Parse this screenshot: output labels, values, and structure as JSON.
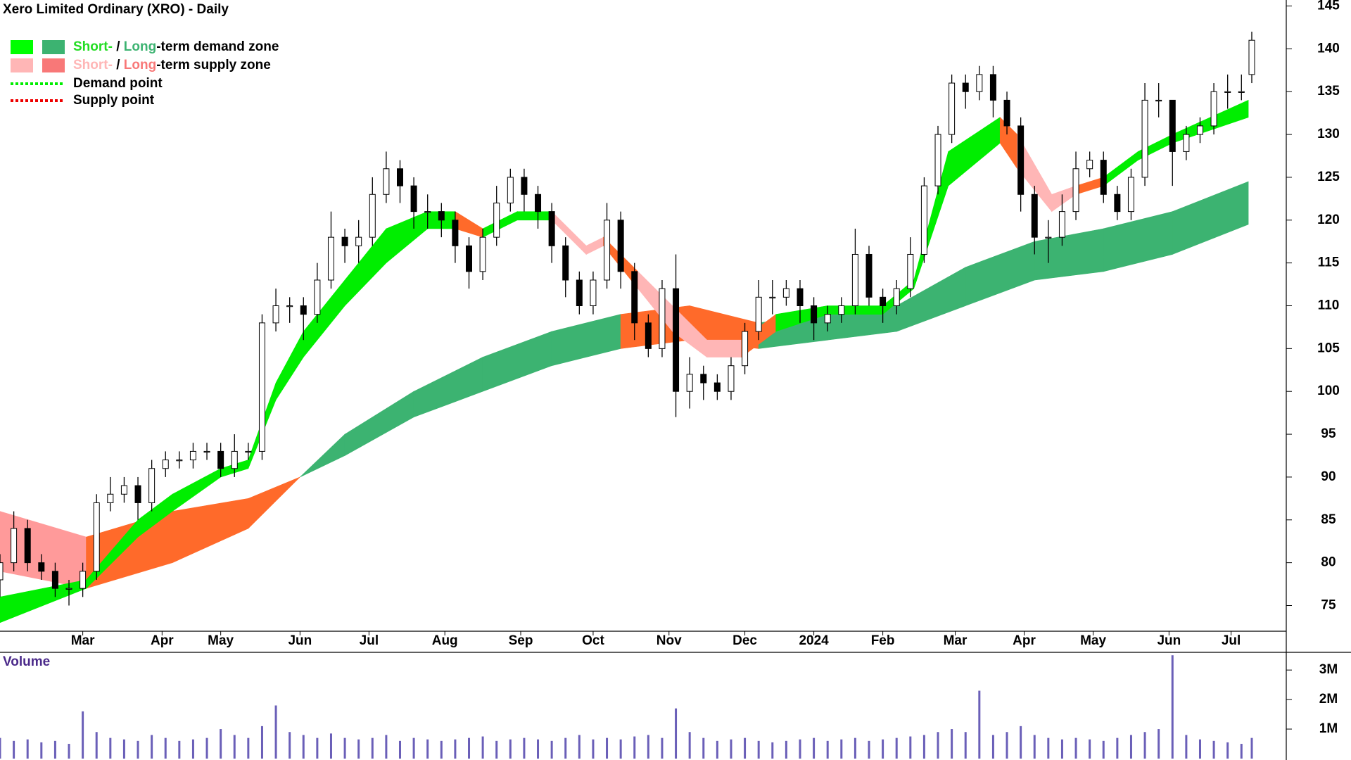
{
  "chart_data": {
    "type": "candlestick",
    "title": "Xero Limited Ordinary (XRO) - Daily",
    "volume_title": "Volume",
    "xlim": [
      0,
      373
    ],
    "xticks": [
      {
        "value": 24,
        "label": "Mar"
      },
      {
        "value": 47,
        "label": "Apr"
      },
      {
        "value": 64,
        "label": "May"
      },
      {
        "value": 87,
        "label": "Jun"
      },
      {
        "value": 107,
        "label": "Jul"
      },
      {
        "value": 129,
        "label": "Aug"
      },
      {
        "value": 151,
        "label": "Sep"
      },
      {
        "value": 172,
        "label": "Oct"
      },
      {
        "value": 194,
        "label": "Nov"
      },
      {
        "value": 216,
        "label": "Dec"
      },
      {
        "value": 236,
        "label": "2024"
      },
      {
        "value": 256,
        "label": "Feb"
      },
      {
        "value": 277,
        "label": "Mar"
      },
      {
        "value": 297,
        "label": "Apr"
      },
      {
        "value": 317,
        "label": "May"
      },
      {
        "value": 339,
        "label": "Jun"
      },
      {
        "value": 357,
        "label": "Jul"
      }
    ],
    "ylim": [
      72,
      145.7
    ],
    "yticks": [
      75,
      80,
      85,
      90,
      95,
      100,
      105,
      110,
      115,
      120,
      125,
      130,
      135,
      140,
      145
    ],
    "vlim": [
      0,
      3600000
    ],
    "vticks": [
      {
        "value": 1000000,
        "label": "1M"
      },
      {
        "value": 2000000,
        "label": "2M"
      },
      {
        "value": 3000000,
        "label": "3M"
      }
    ],
    "volume_color": "#6a5fb8",
    "up_color": "#ffffff",
    "down_color": "#000000",
    "legend": [
      {
        "swatches": [
          "#00ff00",
          "#3cb371"
        ],
        "short": "Short-",
        "short_color": "#22dd22",
        "sep": " / ",
        "long": "Long",
        "long_color": "#3cb371",
        "rest": "-term demand zone"
      },
      {
        "swatches": [
          "#ffb6b6",
          "#f87878"
        ],
        "short": "Short-",
        "short_color": "#ffb6b6",
        "sep": " / ",
        "long": "Long",
        "long_color": "#f87878",
        "rest": "-term supply zone"
      },
      {
        "line_color": "#00ee00",
        "label": "Demand point"
      },
      {
        "line_color": "#ee0000",
        "label": "Supply point"
      }
    ],
    "long_zone": {
      "x": [
        0,
        25,
        50,
        72,
        87,
        100,
        120,
        140,
        160,
        180,
        200,
        220,
        240,
        260,
        280,
        300,
        320,
        340,
        362
      ],
      "lower": [
        79,
        77,
        80,
        84,
        90,
        92.5,
        97,
        100,
        103,
        105,
        106,
        105,
        106,
        107,
        110,
        113,
        114,
        116,
        119.5
      ],
      "upper": [
        86,
        83,
        86,
        87.5,
        90,
        95,
        100,
        104,
        107,
        109,
        110,
        108,
        109,
        110,
        114.5,
        117.5,
        119,
        121,
        124.5
      ],
      "colors": [
        "#ff9a9a",
        "#ff6a2a",
        "#ff6a2a",
        "#ff6a2a",
        "#3cb371",
        "#3cb371",
        "#3cb371",
        "#3cb371",
        "#3cb371",
        "#ff6a2a",
        "#ff6a2a",
        "#3cb371",
        "#3cb371",
        "#3cb371",
        "#3cb371",
        "#3cb371",
        "#3cb371",
        "#3cb371"
      ]
    },
    "short_zone": {
      "x": [
        0,
        25,
        40,
        50,
        64,
        72,
        80,
        88,
        100,
        112,
        124,
        132,
        140,
        150,
        160,
        170,
        175,
        185,
        195,
        205,
        215,
        225,
        240,
        256,
        265,
        275,
        290,
        295,
        305,
        312,
        320,
        330,
        340,
        362
      ],
      "lower": [
        73,
        77,
        83,
        86,
        90,
        91,
        99,
        104,
        110,
        115,
        119,
        119,
        118,
        120,
        120,
        116,
        117,
        112,
        107,
        104,
        104,
        107,
        109,
        109,
        112,
        124,
        129,
        126,
        121,
        123,
        124,
        127,
        129,
        132
      ],
      "upper": [
        76,
        78,
        85,
        88,
        91,
        92,
        101,
        107,
        113,
        119,
        121,
        121,
        119,
        121,
        121,
        117,
        118,
        114,
        110,
        106,
        106,
        109,
        110,
        110,
        113,
        128,
        132,
        130,
        123,
        124,
        125,
        128,
        130,
        134
      ],
      "colors": [
        "#00ee00",
        "#00ee00",
        "#00ee00",
        "#00ee00",
        "#00ee00",
        "#00ee00",
        "#00ee00",
        "#00ee00",
        "#00ee00",
        "#00ee00",
        "#00ee00",
        "#ff6a2a",
        "#00ee00",
        "#00ee00",
        "#ffb6b6",
        "#ffb6b6",
        "#ff6a2a",
        "#ffb6b6",
        "#ffb6b6",
        "#ffb6b6",
        "#ff6a2a",
        "#00ee00",
        "#00ee00",
        "#00ee00",
        "#00ee00",
        "#00ee00",
        "#ff6a2a",
        "#ffb6b6",
        "#ffb6b6",
        "#ff6a2a",
        "#00ee00",
        "#00ee00",
        "#00ee00"
      ]
    },
    "x": [
      0,
      4,
      8,
      12,
      16,
      20,
      24,
      28,
      32,
      36,
      40,
      44,
      48,
      52,
      56,
      60,
      64,
      68,
      72,
      76,
      80,
      84,
      88,
      92,
      96,
      100,
      104,
      108,
      112,
      116,
      120,
      124,
      128,
      132,
      136,
      140,
      144,
      148,
      152,
      156,
      160,
      164,
      168,
      172,
      176,
      180,
      184,
      188,
      192,
      196,
      200,
      204,
      208,
      212,
      216,
      220,
      224,
      228,
      232,
      236,
      240,
      244,
      248,
      252,
      256,
      260,
      264,
      268,
      272,
      276,
      280,
      284,
      288,
      292,
      296,
      300,
      304,
      308,
      312,
      316,
      320,
      324,
      328,
      332,
      336,
      340,
      344,
      348,
      352,
      356,
      360,
      363
    ],
    "open": [
      78,
      80,
      84,
      80,
      79,
      77,
      77,
      79,
      87,
      88,
      89,
      87,
      91,
      92,
      92,
      93,
      93,
      91,
      93,
      93,
      108,
      110,
      110,
      109,
      113,
      118,
      117,
      118,
      123,
      126,
      124,
      121,
      121,
      120,
      117,
      114,
      118,
      122,
      125,
      123,
      121,
      117,
      113,
      110,
      113,
      120,
      114,
      108,
      105,
      112,
      100,
      102,
      101,
      100,
      103,
      107,
      111,
      111,
      112,
      110,
      108,
      109,
      110,
      116,
      111,
      110,
      112,
      116,
      124,
      130,
      136,
      135,
      137,
      134,
      131,
      123,
      118,
      118,
      121,
      126,
      127,
      123,
      121,
      125,
      134,
      134,
      128,
      130,
      131,
      135,
      135,
      137
    ],
    "high": [
      81,
      86,
      85,
      81,
      80,
      78,
      80,
      88,
      90,
      90,
      90,
      92,
      93,
      93,
      94,
      94,
      94,
      95,
      94,
      109,
      112,
      111,
      111,
      115,
      121,
      119,
      120,
      125,
      128,
      127,
      125,
      123,
      122,
      121,
      118,
      119,
      124,
      126,
      126,
      124,
      122,
      118,
      114,
      114,
      122,
      121,
      115,
      109,
      113,
      116,
      104,
      103,
      102,
      104,
      108,
      113,
      113,
      113,
      113,
      111,
      110,
      111,
      119,
      117,
      112,
      113,
      118,
      125,
      131,
      137,
      137,
      138,
      138,
      135,
      132,
      124,
      120,
      123,
      128,
      128,
      128,
      124,
      126,
      136,
      136,
      134,
      131,
      132,
      136,
      137,
      137,
      142
    ],
    "low": [
      76,
      79,
      79,
      78,
      76,
      75,
      76,
      78,
      86,
      87,
      85,
      86,
      90,
      91,
      91,
      92,
      90,
      90,
      92,
      92,
      107,
      108,
      106,
      108,
      112,
      115,
      115,
      117,
      122,
      122,
      119,
      119,
      118,
      115,
      112,
      113,
      117,
      121,
      121,
      119,
      115,
      111,
      109,
      109,
      112,
      112,
      106,
      104,
      104,
      97,
      98,
      99,
      99,
      99,
      102,
      106,
      109,
      110,
      108,
      106,
      107,
      108,
      109,
      110,
      108,
      109,
      111,
      115,
      123,
      129,
      133,
      134,
      132,
      130,
      121,
      116,
      115,
      117,
      120,
      125,
      122,
      120,
      120,
      124,
      132,
      124,
      127,
      129,
      130,
      133,
      134,
      136
    ],
    "close": [
      80,
      84,
      80,
      79,
      77,
      77,
      79,
      87,
      88,
      89,
      87,
      91,
      92,
      92,
      93,
      93,
      91,
      93,
      93,
      108,
      110,
      110,
      109,
      113,
      118,
      117,
      118,
      123,
      126,
      124,
      121,
      121,
      120,
      117,
      114,
      118,
      122,
      125,
      123,
      121,
      117,
      113,
      110,
      113,
      120,
      114,
      108,
      105,
      112,
      100,
      102,
      101,
      100,
      103,
      107,
      111,
      111,
      112,
      110,
      108,
      109,
      110,
      116,
      111,
      110,
      112,
      116,
      124,
      130,
      136,
      135,
      137,
      134,
      131,
      123,
      118,
      118,
      121,
      126,
      127,
      123,
      121,
      125,
      134,
      134,
      128,
      130,
      131,
      135,
      135,
      135,
      141
    ],
    "volume": [
      700000,
      600000,
      650000,
      550000,
      600000,
      500000,
      1600000,
      900000,
      700000,
      650000,
      600000,
      800000,
      700000,
      600000,
      650000,
      700000,
      1000000,
      800000,
      700000,
      1100000,
      1800000,
      900000,
      800000,
      700000,
      850000,
      700000,
      650000,
      700000,
      800000,
      600000,
      700000,
      650000,
      600000,
      650000,
      700000,
      750000,
      600000,
      650000,
      700000,
      650000,
      600000,
      700000,
      800000,
      650000,
      700000,
      650000,
      750000,
      800000,
      700000,
      1700000,
      900000,
      700000,
      600000,
      650000,
      700000,
      600000,
      550000,
      600000,
      650000,
      700000,
      600000,
      650000,
      700000,
      600000,
      650000,
      700000,
      750000,
      800000,
      900000,
      1000000,
      900000,
      2300000,
      800000,
      900000,
      1100000,
      800000,
      700000,
      650000,
      700000,
      650000,
      600000,
      700000,
      800000,
      900000,
      1000000,
      3500000,
      800000,
      650000,
      600000,
      550000,
      500000,
      700000
    ]
  }
}
